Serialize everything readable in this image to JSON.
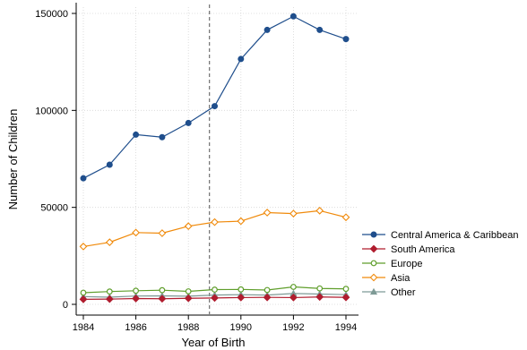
{
  "chart_data": {
    "type": "line",
    "title": "",
    "xlabel": "Year of Birth",
    "ylabel": "Number of Children",
    "x": [
      1984,
      1985,
      1986,
      1987,
      1988,
      1989,
      1990,
      1991,
      1992,
      1993,
      1994
    ],
    "xticks": [
      "1984",
      "1986",
      "1988",
      "1990",
      "1992",
      "1994"
    ],
    "yticks": [
      "0",
      "50000",
      "100000",
      "150000"
    ],
    "xlim": [
      1984,
      1994
    ],
    "ylim": [
      0,
      150000
    ],
    "grid": true,
    "vline": 1988.8,
    "legend_position": "right",
    "series": [
      {
        "name": "Central America & Caribbean",
        "color": "#1f4e8c",
        "marker": "circle",
        "values": [
          65000,
          72000,
          87500,
          86200,
          93500,
          102200,
          126500,
          141500,
          148500,
          141500,
          136800
        ]
      },
      {
        "name": "South America",
        "color": "#b01c2e",
        "marker": "diamond",
        "values": [
          2600,
          2700,
          3000,
          2900,
          3100,
          3300,
          3500,
          3600,
          3500,
          3800,
          3600
        ]
      },
      {
        "name": "Europe",
        "color": "#5f9e2b",
        "marker": "circle-hollow",
        "values": [
          6000,
          6600,
          7000,
          7300,
          6700,
          7600,
          7700,
          7400,
          9000,
          8200,
          8000
        ]
      },
      {
        "name": "Asia",
        "color": "#f08a0b",
        "marker": "diamond-hollow",
        "values": [
          29800,
          32000,
          37000,
          36700,
          40300,
          42400,
          42900,
          47300,
          46800,
          48300,
          44900
        ]
      },
      {
        "name": "Other",
        "color": "#7e9a96",
        "marker": "triangle",
        "values": [
          4000,
          3700,
          4300,
          4400,
          4200,
          4800,
          5000,
          4800,
          5600,
          5300,
          5000
        ]
      }
    ]
  }
}
